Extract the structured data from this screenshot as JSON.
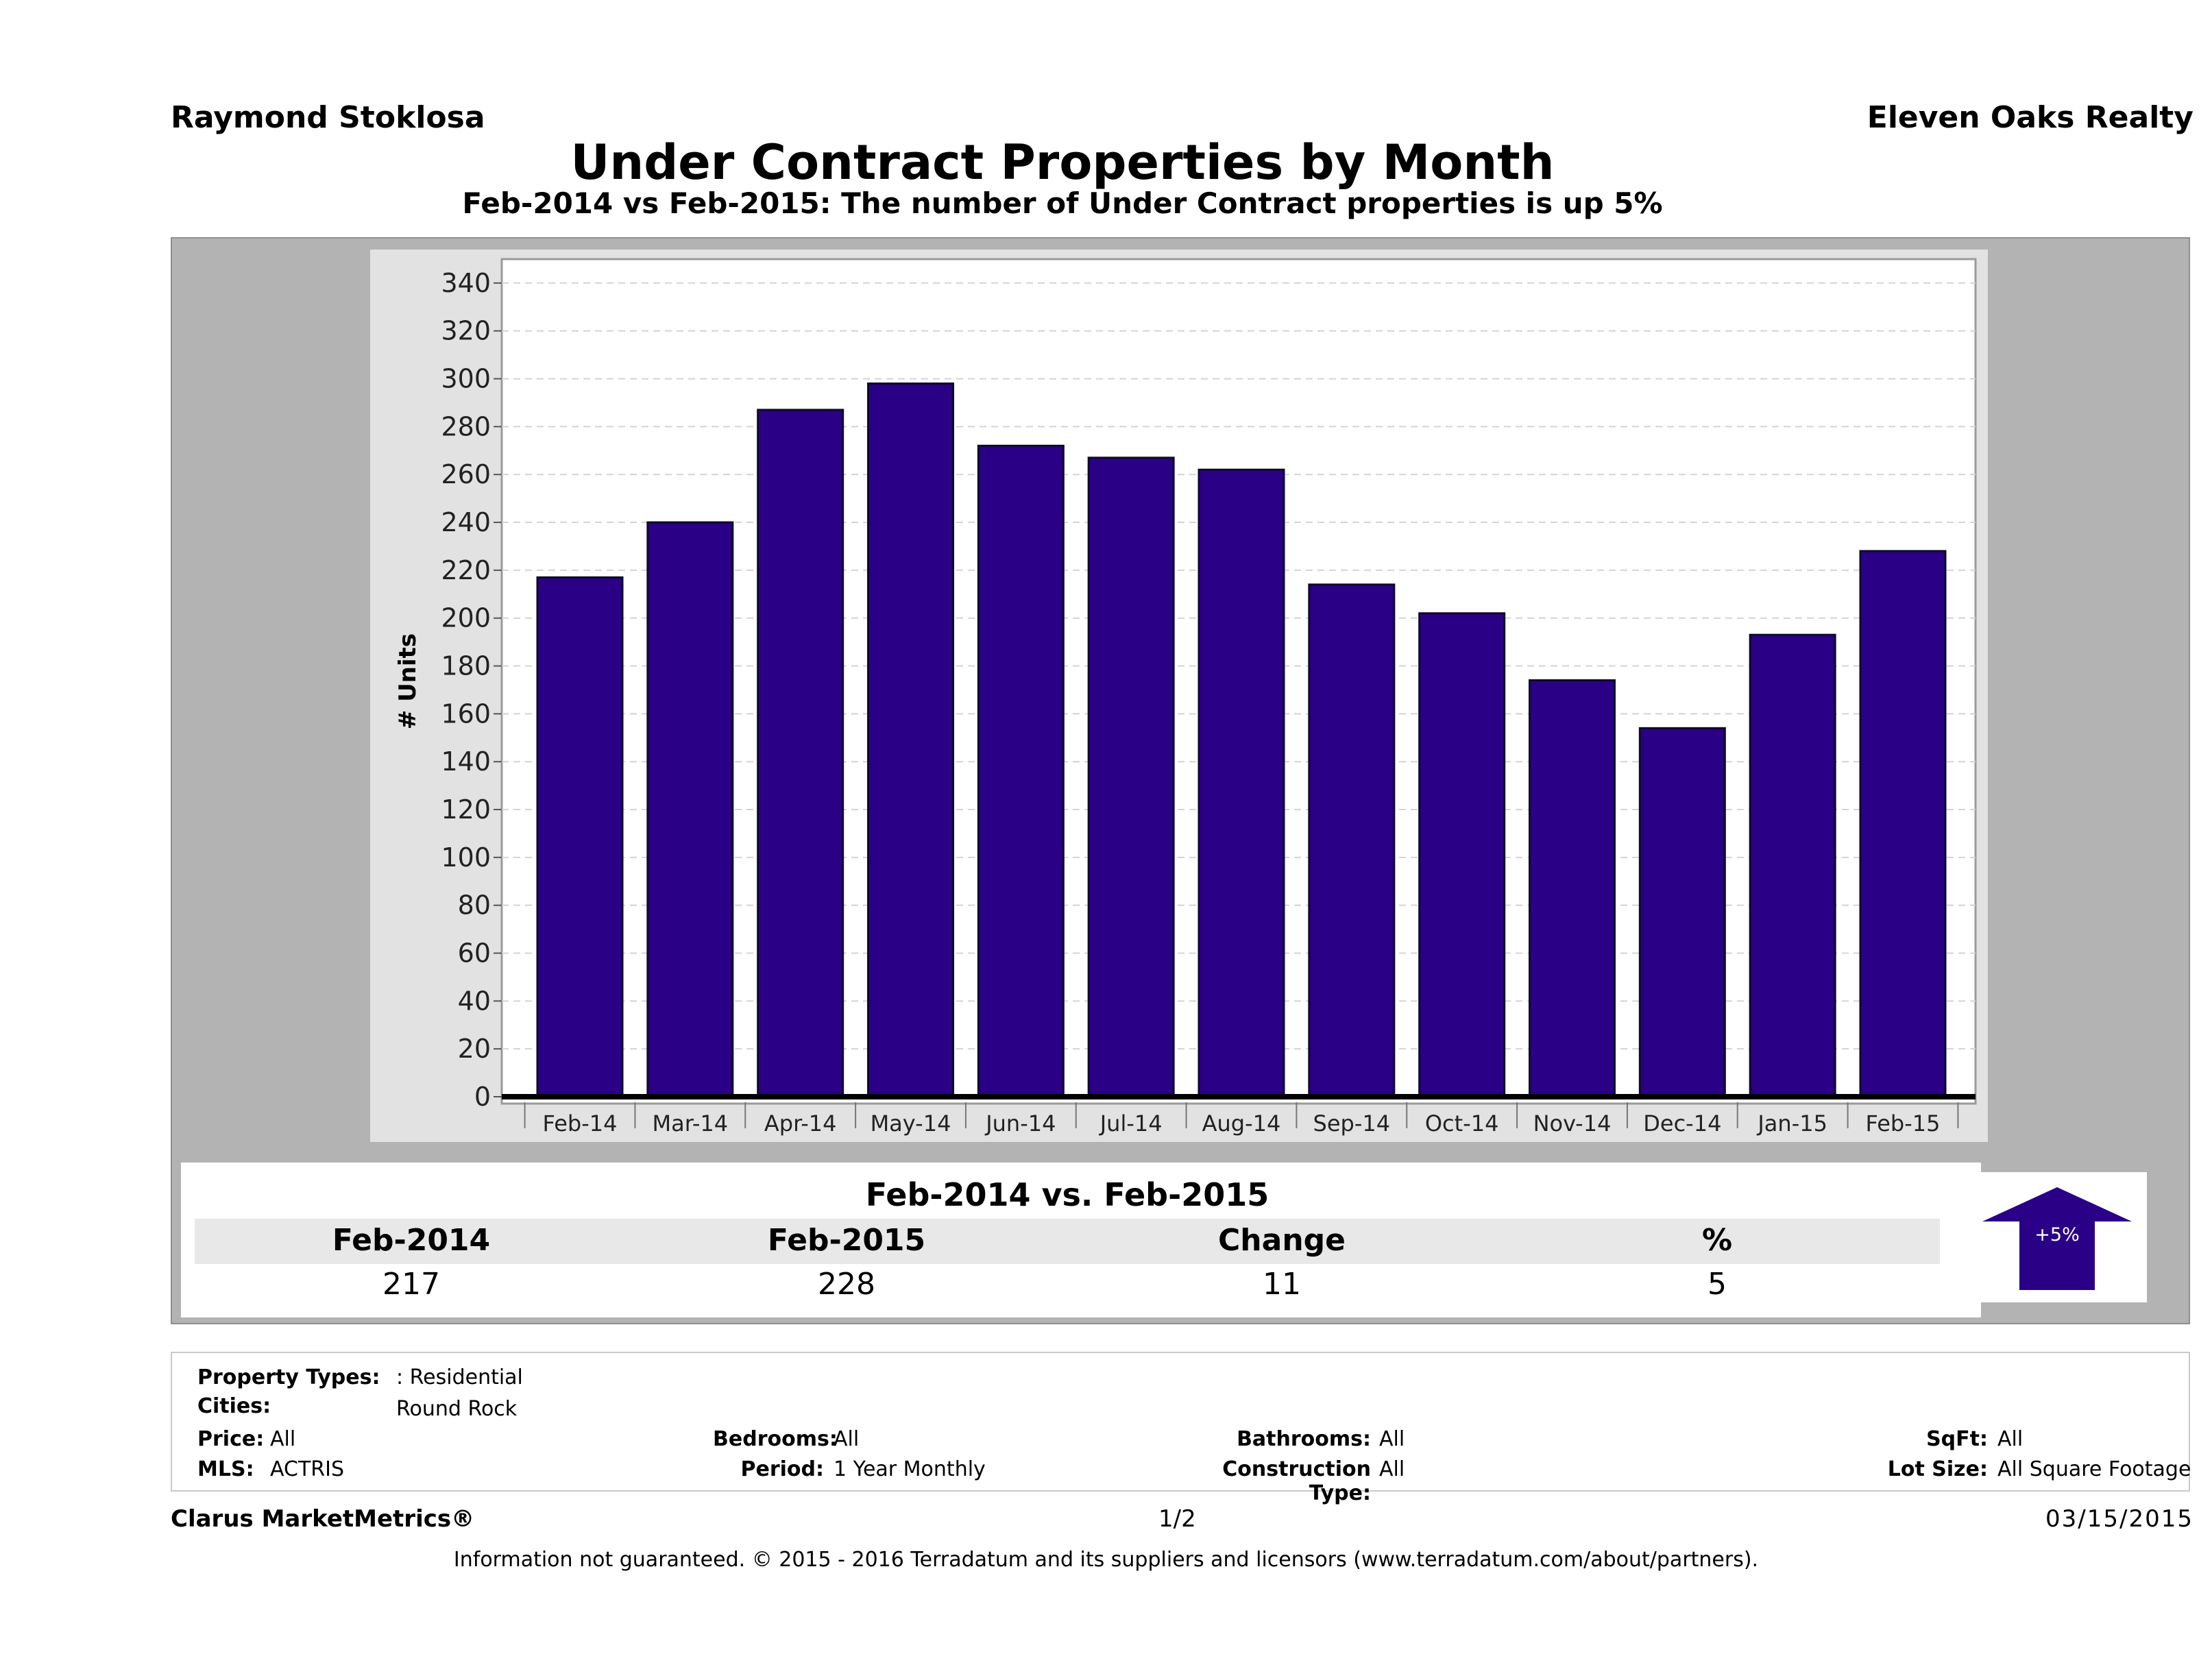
{
  "header": {
    "agent_name": "Raymond Stoklosa",
    "brokerage": "Eleven Oaks Realty",
    "title": "Under Contract Properties by Month",
    "subtitle": "Feb-2014 vs Feb-2015: The number of Under Contract   properties is up 5%"
  },
  "colors": {
    "bar": "#2a0086",
    "frame": "#b3b3b3",
    "panel": "#e2e2e2"
  },
  "chart_data": {
    "type": "bar",
    "title": "",
    "xlabel": "",
    "ylabel": "# Units",
    "categories": [
      "Feb-14",
      "Mar-14",
      "Apr-14",
      "May-14",
      "Jun-14",
      "Jul-14",
      "Aug-14",
      "Sep-14",
      "Oct-14",
      "Nov-14",
      "Dec-14",
      "Jan-15",
      "Feb-15"
    ],
    "values": [
      217,
      240,
      287,
      298,
      272,
      267,
      262,
      214,
      202,
      174,
      154,
      193,
      228
    ],
    "ylim": [
      0,
      350
    ],
    "yticks": [
      0,
      20,
      40,
      60,
      80,
      100,
      120,
      140,
      160,
      180,
      200,
      220,
      240,
      260,
      280,
      300,
      320,
      340
    ],
    "grid": true,
    "legend": "none"
  },
  "comparison": {
    "title": "Feb-2014 vs. Feb-2015",
    "headers": [
      "Feb-2014",
      "Feb-2015",
      "Change",
      "%"
    ],
    "values": [
      "217",
      "228",
      "11",
      "5"
    ],
    "badge": "+5%",
    "badge_icon": "up-arrow-icon"
  },
  "params": {
    "property_types_label": "Property Types:",
    "property_types_value": ": Residential",
    "cities_label": "Cities:",
    "cities_value": "Round Rock",
    "price_label": "Price:",
    "price_value": "All",
    "mls_label": "MLS:",
    "mls_value": "ACTRIS",
    "bedrooms_label": "Bedrooms:",
    "bedrooms_value": "All",
    "period_label": "Period:",
    "period_value": "1 Year Monthly",
    "bathrooms_label": "Bathrooms:",
    "bathrooms_value": "All",
    "construction_label": "Construction Type:",
    "construction_value": "All",
    "sqft_label": "SqFt:",
    "sqft_value": "All",
    "lot_label": "Lot Size:",
    "lot_value": "All Square Footage"
  },
  "footer": {
    "product": "Clarus MarketMetrics®",
    "page": "1/2",
    "date": "03/15/2015",
    "disclaimer": "Information not guaranteed. © 2015 - 2016 Terradatum and its suppliers and licensors (www.terradatum.com/about/partners)."
  }
}
